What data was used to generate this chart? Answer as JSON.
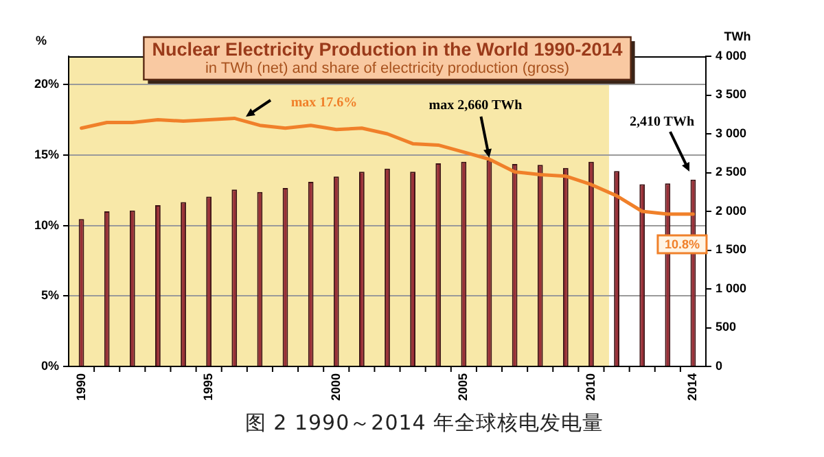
{
  "chart_data": {
    "type": "bar",
    "title": "Nuclear Electricity Production in the World 1990-2014",
    "subtitle": "in TWh (net) and share of electricity production (gross)",
    "ylabel": "%",
    "y2label": "TWh",
    "x": [
      1990,
      1991,
      1992,
      1993,
      1994,
      1995,
      1996,
      1997,
      1998,
      1999,
      2000,
      2001,
      2002,
      2003,
      2004,
      2005,
      2006,
      2007,
      2008,
      2009,
      2010,
      2011,
      2012,
      2013,
      2014
    ],
    "series": [
      {
        "axis": "y2",
        "color": "#9a3038",
        "values": [
          1900,
          2000,
          2010,
          2080,
          2120,
          2190,
          2280,
          2250,
          2300,
          2380,
          2450,
          2510,
          2550,
          2510,
          2620,
          2640,
          2660,
          2610,
          2600,
          2560,
          2640,
          2520,
          2350,
          2360,
          2410
        ]
      },
      {
        "type": "line",
        "color": "#f0802a",
        "values": [
          16.9,
          17.3,
          17.3,
          17.5,
          17.4,
          17.5,
          17.6,
          17.1,
          16.9,
          17.1,
          16.8,
          16.9,
          16.5,
          15.8,
          15.7,
          15.2,
          14.7,
          13.8,
          13.6,
          13.5,
          12.9,
          12.1,
          11.0,
          10.8,
          10.8
        ]
      }
    ],
    "xlim": [
      1989.5,
      2014.5
    ],
    "xticks": [
      1990,
      {
        "value": 1990.5,
        "label": null
      },
      {
        "value": 1991.5,
        "label": null
      },
      {
        "value": 1992.5,
        "label": null
      },
      {
        "value": 1993.5,
        "label": null
      },
      {
        "value": 1994.5,
        "label": null
      },
      1995,
      {
        "value": 1995.5,
        "label": null
      },
      {
        "value": 1996.5,
        "label": null
      },
      {
        "value": 1997.5,
        "label": null
      },
      {
        "value": 1998.5,
        "label": null
      },
      {
        "value": 1999.5,
        "label": null
      },
      2000,
      {
        "value": 2000.5,
        "label": null
      },
      {
        "value": 2001.5,
        "label": null
      },
      {
        "value": 2002.5,
        "label": null
      },
      {
        "value": 2003.5,
        "label": null
      },
      {
        "value": 2004.5,
        "label": null
      },
      2005,
      {
        "value": 2005.5,
        "label": null
      },
      {
        "value": 2006.5,
        "label": null
      },
      {
        "value": 2007.5,
        "label": null
      },
      {
        "value": 2008.5,
        "label": null
      },
      {
        "value": 2009.5,
        "label": null
      },
      2010,
      {
        "value": 2010.5,
        "label": null
      },
      {
        "value": 2011.5,
        "label": null
      },
      {
        "value": 2012.5,
        "label": null
      },
      {
        "value": 2013.5,
        "label": null
      },
      2014
    ],
    "ylim": [
      0,
      22
    ],
    "yticks": [
      {
        "value": 0,
        "label": "0%"
      },
      {
        "value": 5,
        "label": "5%"
      },
      {
        "value": 10,
        "label": "10%"
      },
      {
        "value": 15,
        "label": "15%"
      },
      {
        "value": 20,
        "label": "20%"
      }
    ],
    "y2lim": [
      0,
      4000
    ],
    "y2ticks": [
      0,
      500,
      {
        "value": 1000,
        "label": "1 000"
      },
      {
        "value": 1500,
        "label": "1 500"
      },
      {
        "value": 2000,
        "label": "2 000"
      },
      {
        "value": 2500,
        "label": "2 500"
      },
      {
        "value": 3000,
        "label": "3 000"
      },
      {
        "value": 3500,
        "label": "3 500"
      },
      {
        "value": 4000,
        "label": "4 000"
      }
    ],
    "grid": "y",
    "marker": "none",
    "line_style": "solid",
    "bands": [
      {
        "axis": "x",
        "from": 1989.5,
        "to": 2010.7,
        "color": "#f8e8a8"
      }
    ],
    "annotations": [
      "max 17.6%",
      {
        "text": "max 2,660 TWh",
        "x": 2006,
        "y": 14.7
      },
      "2,410 TWh",
      {
        "text": "10.8%",
        "x": 2014,
        "y": 10.8
      },
      "图 2 1990～2014 年全球核电发电量"
    ]
  }
}
